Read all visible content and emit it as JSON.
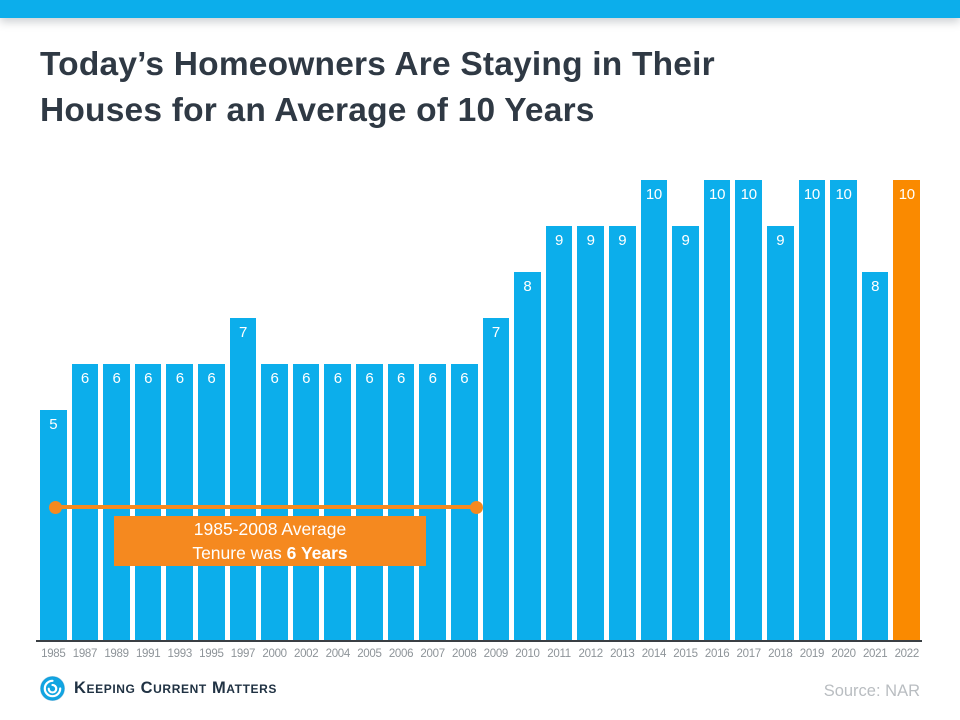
{
  "header": {
    "strip_color": "#0CAEEB",
    "title_line1": "Today’s Homeowners Are Staying in Their",
    "title_line2": "Houses for an Average of 10 Years"
  },
  "chart_data": {
    "type": "bar",
    "title": "Today’s Homeowners Are Staying in Their Houses for an Average of 10 Years",
    "categories": [
      "1985",
      "1987",
      "1989",
      "1991",
      "1993",
      "1995",
      "1997",
      "2000",
      "2002",
      "2004",
      "2005",
      "2006",
      "2007",
      "2008",
      "2009",
      "2010",
      "2011",
      "2012",
      "2013",
      "2014",
      "2015",
      "2016",
      "2017",
      "2018",
      "2019",
      "2020",
      "2021",
      "2022"
    ],
    "values": [
      5,
      6,
      6,
      6,
      6,
      6,
      7,
      6,
      6,
      6,
      6,
      6,
      6,
      6,
      7,
      8,
      9,
      9,
      9,
      10,
      9,
      10,
      10,
      9,
      10,
      10,
      8,
      10
    ],
    "xlabel": "",
    "ylabel": "",
    "ylim": [
      0,
      10
    ],
    "grid": false,
    "legend": false,
    "value_labels_shown": true,
    "bar_color": "#0CAEEB",
    "highlight_color": "#FA8A00",
    "highlight_index": 27,
    "value_label_color": "#FFFFFF",
    "axis_label_color": "#8E9499"
  },
  "annotation": {
    "line1": "1985-2008 Average",
    "line2_prefix": "Tenure was ",
    "line2_bold": "6 Years",
    "box_color": "#F5891F",
    "range_start_year": "1985",
    "range_end_year": "2008"
  },
  "footer": {
    "logo_text": "Keeping Current Matters",
    "source": "Source: NAR"
  }
}
